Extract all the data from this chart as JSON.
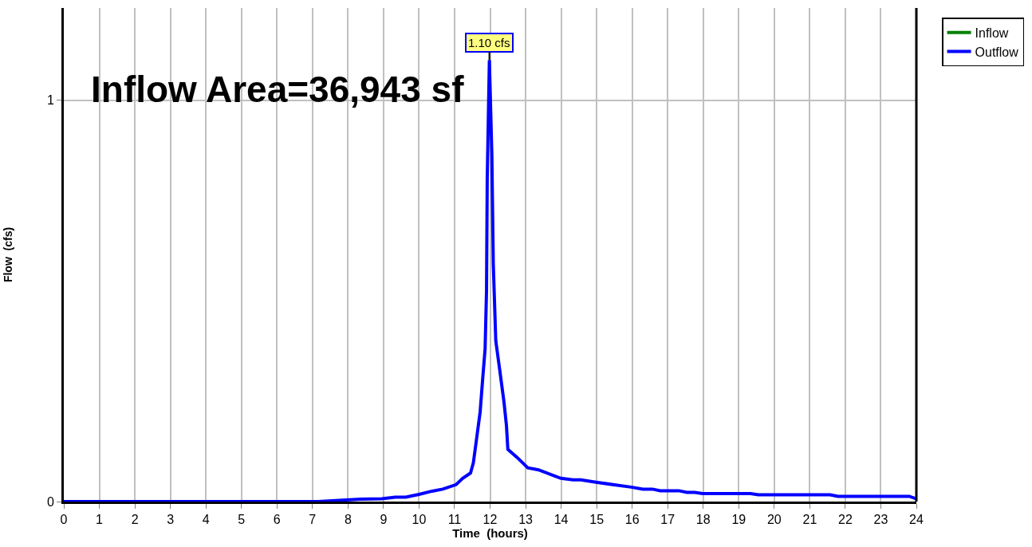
{
  "chart_data": {
    "type": "line",
    "xlabel": "Time  (hours)",
    "ylabel": "Flow  (cfs)",
    "x": [
      0,
      7.16,
      8.35,
      8.95,
      9.33,
      9.63,
      10.0,
      10.37,
      10.67,
      11.04,
      11.23,
      11.45,
      11.53,
      11.64,
      11.72,
      11.8,
      11.86,
      11.9,
      11.92,
      11.98,
      12.05,
      12.09,
      12.16,
      12.27,
      12.39,
      12.46,
      12.5,
      12.76,
      13.06,
      13.36,
      13.99,
      14.33,
      14.55,
      14.98,
      15.97,
      16.3,
      16.57,
      16.79,
      17.31,
      17.54,
      17.76,
      17.98,
      19.33,
      19.55,
      21.57,
      21.79,
      23.8,
      23.99
    ],
    "series": [
      {
        "name": "Inflow",
        "color": "#008000",
        "values": [
          null,
          null,
          null,
          null,
          null,
          null,
          null,
          null,
          null,
          null,
          null,
          null,
          null,
          null,
          null,
          null,
          null,
          null,
          null,
          null,
          null,
          null,
          null,
          null,
          null,
          null,
          null,
          null,
          null,
          null,
          null,
          null,
          null,
          null,
          null,
          null,
          null,
          null,
          null,
          null,
          null,
          null,
          null,
          null,
          null,
          null,
          null,
          null
        ]
      },
      {
        "name": "Outflow",
        "color": "#0000ff",
        "values": [
          0,
          0,
          0.006,
          0.007,
          0.011,
          0.011,
          0.018,
          0.026,
          0.031,
          0.042,
          0.058,
          0.071,
          0.097,
          0.17,
          0.223,
          0.315,
          0.38,
          0.527,
          0.805,
          1.1,
          0.864,
          0.593,
          0.401,
          0.329,
          0.249,
          0.19,
          0.13,
          0.11,
          0.084,
          0.079,
          0.058,
          0.054,
          0.054,
          0.048,
          0.036,
          0.031,
          0.031,
          0.027,
          0.027,
          0.023,
          0.023,
          0.02,
          0.02,
          0.017,
          0.017,
          0.013,
          0.013,
          0.007
        ]
      }
    ],
    "xlim": [
      0,
      24
    ],
    "xticks": [
      0,
      1,
      2,
      3,
      4,
      5,
      6,
      7,
      8,
      9,
      10,
      11,
      12,
      13,
      14,
      15,
      16,
      17,
      18,
      19,
      20,
      21,
      22,
      23,
      24
    ],
    "ylim": [
      0,
      1.23
    ],
    "yticks": [
      0,
      1
    ],
    "grid": true,
    "legend": "top right",
    "marker": "none",
    "line_style": "solid",
    "annotations": [
      {
        "text": "1.10 cfs",
        "x": 11.98,
        "y": 1.1
      },
      "Inflow Area=36,943 sf"
    ]
  }
}
